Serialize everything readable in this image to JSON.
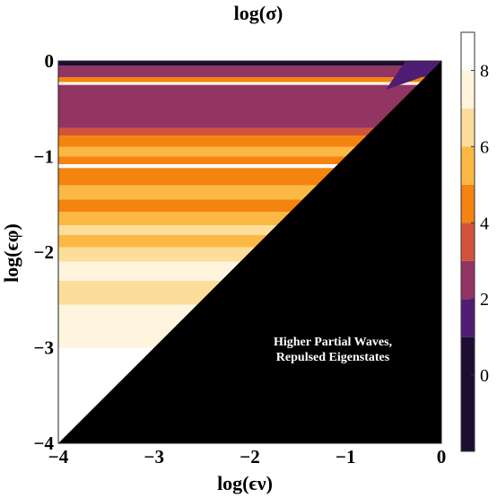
{
  "chart_data": {
    "type": "heatmap",
    "title": "log(σ)",
    "xlabel": "log(ϵν)",
    "ylabel": "log(ϵφ)",
    "xlim": [
      -4,
      0
    ],
    "ylim": [
      -4,
      0
    ],
    "x_ticks": [
      "−4",
      "−3",
      "−2",
      "−1",
      "0"
    ],
    "y_ticks": [
      "0",
      "−1",
      "−2",
      "−3",
      "−4"
    ],
    "grid": false,
    "masked_region": "lower-right triangle (x > y)",
    "annotation": [
      "Higher Partial Waves,",
      "Repulsed Eigenstates"
    ],
    "colorbar": {
      "placement": "right",
      "range": [
        -2,
        9
      ],
      "ticks": [
        "8",
        "6",
        "4",
        "2",
        "0"
      ],
      "levels": [
        {
          "from": -2,
          "to": 1,
          "color": "#1d0d33"
        },
        {
          "from": 1,
          "to": 2,
          "color": "#4f1d73"
        },
        {
          "from": 2,
          "to": 3,
          "color": "#923563"
        },
        {
          "from": 3,
          "to": 4,
          "color": "#d1533a"
        },
        {
          "from": 4,
          "to": 5,
          "color": "#f5830f"
        },
        {
          "from": 5,
          "to": 6,
          "color": "#fbb944"
        },
        {
          "from": 6,
          "to": 7,
          "color": "#fcdd9a"
        },
        {
          "from": 7,
          "to": 8,
          "color": "#fff4de"
        },
        {
          "from": 8,
          "to": 9,
          "color": "#ffffff"
        }
      ]
    },
    "bands": [
      {
        "y_top": 0.0,
        "y_bot": -0.05,
        "value": 0.5
      },
      {
        "y_top": -0.05,
        "y_bot": -0.17,
        "value": 2.5
      },
      {
        "y_top": -0.17,
        "y_bot": -0.22,
        "value": 4.5
      },
      {
        "y_top": -0.22,
        "y_bot": -0.25,
        "value": 7.5
      },
      {
        "y_top": -0.25,
        "y_bot": -0.7,
        "value": 2.5
      },
      {
        "y_top": -0.7,
        "y_bot": -0.78,
        "value": 3.5
      },
      {
        "y_top": -0.78,
        "y_bot": -0.9,
        "value": 4.5
      },
      {
        "y_top": -0.9,
        "y_bot": -1.0,
        "value": 5.5
      },
      {
        "y_top": -1.0,
        "y_bot": -1.08,
        "value": 4.5
      },
      {
        "y_top": -1.08,
        "y_bot": -1.12,
        "value": 8.5
      },
      {
        "y_top": -1.12,
        "y_bot": -1.3,
        "value": 4.5
      },
      {
        "y_top": -1.3,
        "y_bot": -1.45,
        "value": 5.5
      },
      {
        "y_top": -1.45,
        "y_bot": -1.58,
        "value": 4.5
      },
      {
        "y_top": -1.58,
        "y_bot": -1.72,
        "value": 5.5
      },
      {
        "y_top": -1.72,
        "y_bot": -1.82,
        "value": 6.5
      },
      {
        "y_top": -1.82,
        "y_bot": -1.95,
        "value": 5.5
      },
      {
        "y_top": -1.95,
        "y_bot": -2.1,
        "value": 6.5
      },
      {
        "y_top": -2.1,
        "y_bot": -2.3,
        "value": 7.5
      },
      {
        "y_top": -2.3,
        "y_bot": -2.55,
        "value": 6.5
      },
      {
        "y_top": -2.55,
        "y_bot": -3.0,
        "value": 7.5
      },
      {
        "y_top": -3.0,
        "y_bot": -4.0,
        "value": 8.5
      }
    ],
    "diagonal_edge_value": 1.5
  }
}
